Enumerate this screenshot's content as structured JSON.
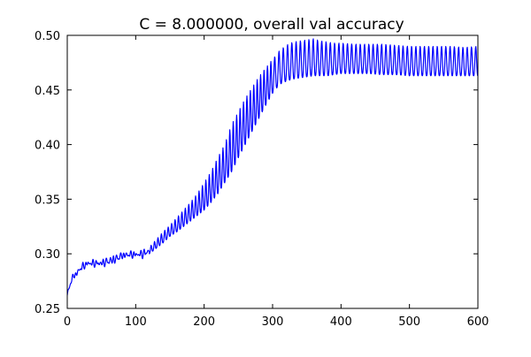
{
  "chart_data": {
    "type": "line",
    "title": "C = 8.000000, overall val accuracy",
    "xlabel": "",
    "ylabel": "",
    "xlim": [
      0,
      600
    ],
    "ylim": [
      0.25,
      0.5
    ],
    "xticks": [
      0,
      100,
      200,
      300,
      400,
      500,
      600
    ],
    "yticks": [
      0.25,
      0.3,
      0.35,
      0.4,
      0.45,
      0.5
    ],
    "xtick_labels": [
      "0",
      "100",
      "200",
      "300",
      "400",
      "500",
      "600"
    ],
    "ytick_labels": [
      "0.25",
      "0.30",
      "0.35",
      "0.40",
      "0.45",
      "0.50"
    ],
    "grid": false,
    "legend": "none",
    "series": [
      {
        "color": "#0000ff",
        "x": [
          0,
          3,
          6,
          10,
          15,
          20,
          25,
          30,
          40,
          50,
          60,
          70,
          80,
          90,
          100,
          110,
          120,
          130,
          140,
          150,
          160,
          170,
          180,
          190,
          200,
          210,
          220,
          230,
          240,
          250,
          260,
          270,
          280,
          290,
          300,
          310,
          320,
          330,
          340,
          350,
          360,
          370,
          380,
          390,
          400,
          420,
          440,
          460,
          480,
          500,
          520,
          540,
          560,
          580,
          600
        ],
        "lower": [
          0.262,
          0.268,
          0.275,
          0.279,
          0.282,
          0.286,
          0.288,
          0.29,
          0.29,
          0.29,
          0.291,
          0.293,
          0.297,
          0.298,
          0.298,
          0.298,
          0.3,
          0.305,
          0.31,
          0.316,
          0.32,
          0.325,
          0.33,
          0.335,
          0.34,
          0.347,
          0.355,
          0.365,
          0.375,
          0.388,
          0.4,
          0.412,
          0.424,
          0.436,
          0.447,
          0.455,
          0.458,
          0.46,
          0.461,
          0.462,
          0.463,
          0.463,
          0.463,
          0.464,
          0.465,
          0.465,
          0.465,
          0.464,
          0.464,
          0.463,
          0.463,
          0.463,
          0.463,
          0.463,
          0.463
        ],
        "upper": [
          0.262,
          0.27,
          0.278,
          0.281,
          0.284,
          0.289,
          0.291,
          0.293,
          0.293,
          0.293,
          0.296,
          0.298,
          0.3,
          0.301,
          0.301,
          0.302,
          0.306,
          0.313,
          0.32,
          0.326,
          0.333,
          0.34,
          0.347,
          0.355,
          0.365,
          0.375,
          0.388,
          0.4,
          0.418,
          0.43,
          0.442,
          0.452,
          0.462,
          0.47,
          0.478,
          0.486,
          0.491,
          0.494,
          0.495,
          0.496,
          0.497,
          0.495,
          0.494,
          0.493,
          0.493,
          0.492,
          0.492,
          0.492,
          0.491,
          0.49,
          0.49,
          0.49,
          0.49,
          0.489,
          0.49
        ]
      }
    ]
  }
}
